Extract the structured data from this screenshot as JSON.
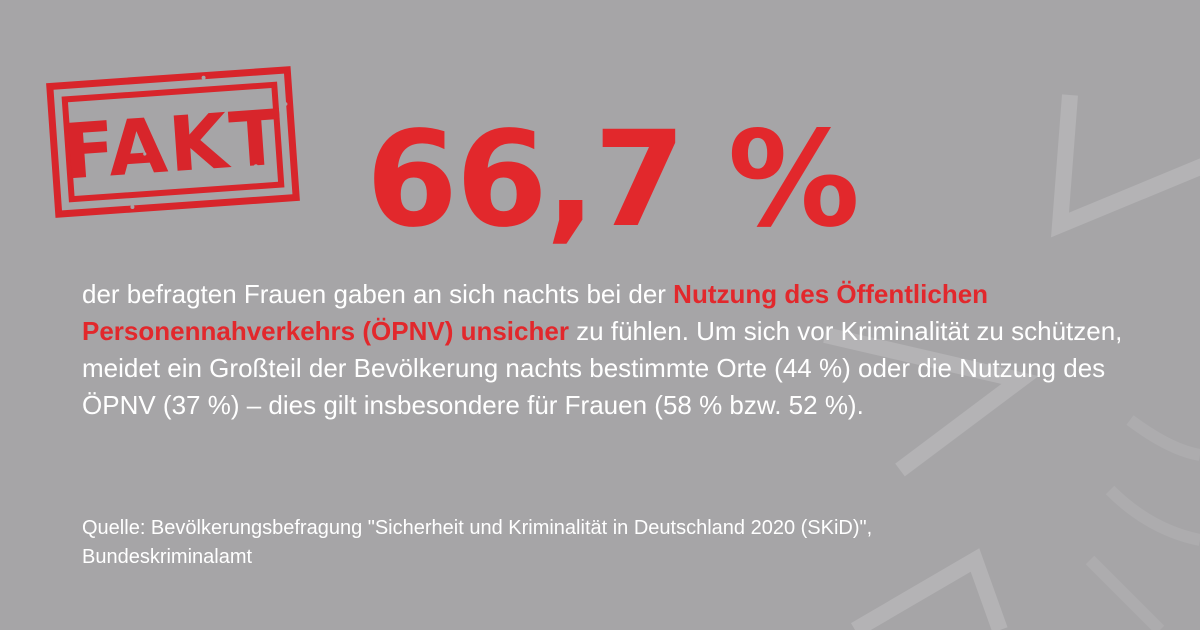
{
  "stamp": {
    "text": "FAKT",
    "color": "#d8252b"
  },
  "headline": {
    "value": "66,7 %",
    "color": "#e2282c"
  },
  "body": {
    "part1": "der befragten Frauen gaben an sich nachts bei der ",
    "highlight": "Nutzung des Öffentlichen Personennahverkehrs (ÖPNV) unsicher",
    "part2": " zu fühlen. Um sich vor Kriminalität zu schützen, meidet ein Großteil der Bevölkerung nachts bestimmte Orte (44 %) oder die Nutzung des ÖPNV (37 %) – dies gilt insbesondere für Frauen (58 % bzw. 52 %)."
  },
  "source": {
    "line1": "Quelle: Bevölkerungsbefragung \"Sicherheit und Kriminalität in Deutschland 2020 (SKiD)\",",
    "line2": "Bundeskriminalamt"
  },
  "theme": {
    "background": "#a6a5a7",
    "text": "#ffffff",
    "decor": "police-star-watermark"
  }
}
